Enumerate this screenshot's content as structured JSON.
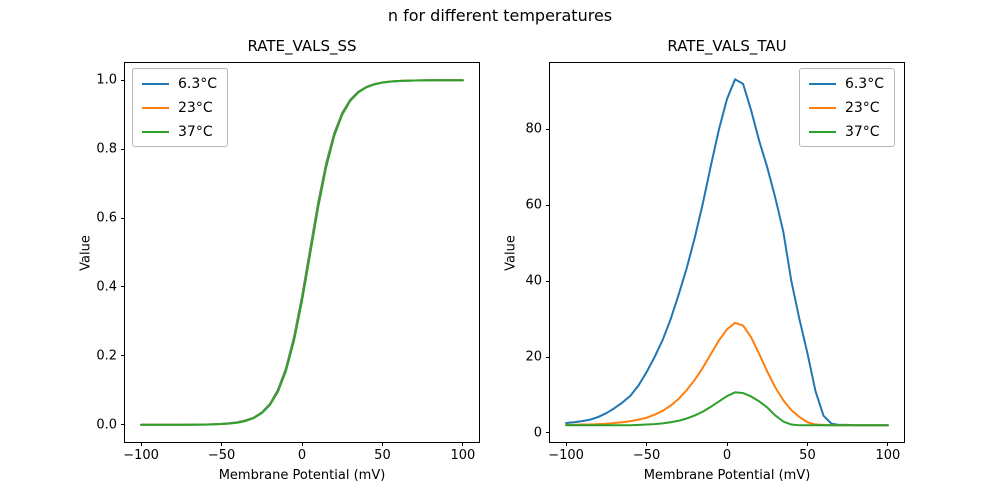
{
  "suptitle": "n for different temperatures",
  "colors": {
    "blue": "#1f77b4",
    "orange": "#ff7f0e",
    "green": "#2ca02c",
    "spine": "#000000",
    "legend_border": "#b7b7b7"
  },
  "chart_data": [
    {
      "type": "line",
      "title": "RATE_VALS_SS",
      "xlabel": "Membrane Potential (mV)",
      "ylabel": "Value",
      "legend_position": "upper-left",
      "grid": false,
      "xlim": [
        -110,
        110
      ],
      "ylim": [
        -0.05,
        1.05
      ],
      "xticks": {
        "values": [
          -100,
          -50,
          0,
          50,
          100
        ],
        "labels": [
          "−100",
          "−50",
          "0",
          "50",
          "100"
        ]
      },
      "yticks": {
        "values": [
          0.0,
          0.2,
          0.4,
          0.6,
          0.8,
          1.0
        ],
        "labels": [
          "0.0",
          "0.2",
          "0.4",
          "0.6",
          "0.8",
          "1.0"
        ]
      },
      "x": [
        -100,
        -95,
        -90,
        -85,
        -80,
        -75,
        -70,
        -65,
        -60,
        -55,
        -50,
        -45,
        -40,
        -35,
        -30,
        -25,
        -20,
        -15,
        -10,
        -5,
        0,
        5,
        10,
        15,
        20,
        25,
        30,
        35,
        40,
        45,
        50,
        55,
        60,
        65,
        70,
        75,
        80,
        85,
        90,
        95,
        100
      ],
      "series": [
        {
          "name": "6.3°C",
          "color": "#1f77b4",
          "values": [
            0,
            0,
            0,
            0,
            0.0001,
            0.0001,
            0.0003,
            0.0005,
            0.0008,
            0.0015,
            0.0025,
            0.0043,
            0.0074,
            0.0128,
            0.0207,
            0.0356,
            0.0601,
            0.1005,
            0.1632,
            0.2539,
            0.3719,
            0.508,
            0.6429,
            0.7581,
            0.8454,
            0.9051,
            0.9434,
            0.9666,
            0.9805,
            0.9887,
            0.9935,
            0.9963,
            0.9979,
            0.9988,
            0.9993,
            0.9996,
            0.9998,
            0.9999,
            0.9999,
            1,
            1
          ]
        },
        {
          "name": "23°C",
          "color": "#ff7f0e",
          "values": [
            0,
            0,
            0,
            0,
            0.0001,
            0.0001,
            0.0002,
            0.0004,
            0.0007,
            0.0013,
            0.0022,
            0.0038,
            0.0067,
            0.0117,
            0.0201,
            0.0345,
            0.0584,
            0.0977,
            0.1589,
            0.2479,
            0.3645,
            0.5,
            0.6355,
            0.7521,
            0.8411,
            0.9023,
            0.9416,
            0.9655,
            0.9799,
            0.9883,
            0.9933,
            0.9962,
            0.9978,
            0.9987,
            0.9993,
            0.9996,
            0.9998,
            0.9999,
            0.9999,
            1,
            1
          ]
        },
        {
          "name": "37°C",
          "color": "#2ca02c",
          "values": [
            0,
            0,
            0,
            0,
            0.0001,
            0.0001,
            0.0002,
            0.0004,
            0.0006,
            0.0012,
            0.0021,
            0.0036,
            0.0063,
            0.011,
            0.0196,
            0.0337,
            0.0571,
            0.0956,
            0.1557,
            0.2434,
            0.3589,
            0.494,
            0.6299,
            0.7476,
            0.8379,
            0.9002,
            0.9403,
            0.9647,
            0.9795,
            0.988,
            0.9931,
            0.9961,
            0.9977,
            0.9986,
            0.9992,
            0.9996,
            0.9998,
            0.9999,
            0.9999,
            1,
            1
          ]
        }
      ]
    },
    {
      "type": "line",
      "title": "RATE_VALS_TAU",
      "xlabel": "Membrane Potential (mV)",
      "ylabel": "Value",
      "legend_position": "upper-right",
      "grid": false,
      "xlim": [
        -110,
        110
      ],
      "ylim": [
        -2.4,
        97.5
      ],
      "xticks": {
        "values": [
          -100,
          -50,
          0,
          50,
          100
        ],
        "labels": [
          "−100",
          "−50",
          "0",
          "50",
          "100"
        ]
      },
      "yticks": {
        "values": [
          0,
          20,
          40,
          60,
          80
        ],
        "labels": [
          "0",
          "20",
          "40",
          "60",
          "80"
        ]
      },
      "x": [
        -100,
        -95,
        -90,
        -85,
        -80,
        -75,
        -70,
        -65,
        -60,
        -55,
        -50,
        -45,
        -40,
        -35,
        -30,
        -25,
        -20,
        -15,
        -10,
        -5,
        0,
        5,
        10,
        15,
        20,
        25,
        30,
        35,
        40,
        45,
        50,
        55,
        60,
        65,
        70,
        75,
        80,
        85,
        90,
        95,
        100
      ],
      "series": [
        {
          "name": "6.3°C",
          "color": "#1f77b4",
          "values": [
            2.6,
            2.8,
            3.1,
            3.5,
            4.2,
            5.2,
            6.5,
            8.0,
            9.8,
            12.5,
            16.0,
            20.0,
            24.5,
            30.0,
            36.5,
            43.5,
            51.5,
            60.5,
            70.5,
            80.0,
            88.0,
            93.2,
            92.0,
            85.0,
            77.0,
            70.0,
            62.0,
            53.0,
            40.0,
            30.0,
            21.0,
            11.0,
            4.5,
            2.4,
            2.1,
            2.1,
            2.0,
            2.0,
            2.0,
            2.0,
            2.0
          ]
        },
        {
          "name": "23°C",
          "color": "#ff7f0e",
          "values": [
            2.1,
            2.1,
            2.2,
            2.2,
            2.3,
            2.4,
            2.6,
            2.8,
            3.1,
            3.5,
            4.0,
            4.8,
            5.8,
            7.2,
            9.0,
            11.3,
            14.0,
            17.2,
            20.8,
            24.4,
            27.3,
            29.0,
            28.3,
            25.2,
            20.8,
            16.2,
            12.0,
            8.6,
            6.0,
            4.2,
            2.8,
            2.2,
            2.1,
            2.0,
            2.0,
            2.0,
            2.0,
            2.0,
            2.0,
            2.0,
            2.0
          ]
        },
        {
          "name": "37°C",
          "color": "#2ca02c",
          "values": [
            2.0,
            2.0,
            2.0,
            2.0,
            2.0,
            2.0,
            2.0,
            2.0,
            2.0,
            2.1,
            2.2,
            2.3,
            2.5,
            2.8,
            3.2,
            3.8,
            4.6,
            5.6,
            6.9,
            8.3,
            9.7,
            10.7,
            10.5,
            9.6,
            8.3,
            6.7,
            4.6,
            3.0,
            2.2,
            2.0,
            2.0,
            2.0,
            2.0,
            2.0,
            2.0,
            2.0,
            2.0,
            2.0,
            2.0,
            2.0,
            2.0
          ]
        }
      ]
    }
  ]
}
